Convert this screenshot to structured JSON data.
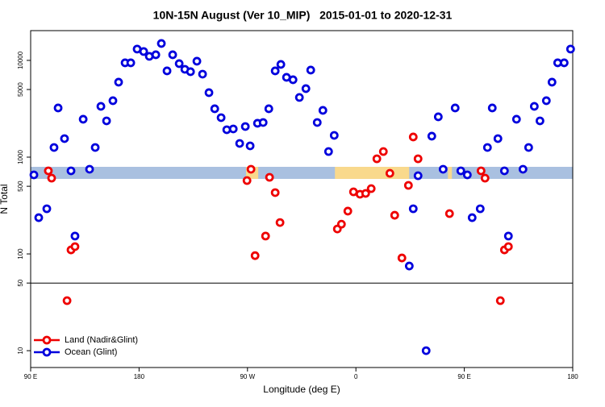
{
  "chart_data": {
    "type": "scatter",
    "title": "10N-15N August (Ver 10_MIP)   2015-01-01 to 2020-12-31",
    "x_label": "Longitude (deg E)",
    "y_label": "N Total",
    "log_y": true,
    "xlim": [
      90,
      540
    ],
    "xticks": [
      {
        "value": 90,
        "label": "90 E"
      },
      {
        "value": 180,
        "label": "180"
      },
      {
        "value": 270,
        "label": "90 W"
      },
      {
        "value": 360,
        "label": "0"
      },
      {
        "value": 450,
        "label": "90 E"
      },
      {
        "value": 540,
        "label": "180"
      }
    ],
    "ylim": [
      6.7,
      20300
    ],
    "yticks": [
      10,
      50,
      100,
      500,
      1000,
      5000,
      10000
    ],
    "reference_line": 50,
    "band": {
      "y": [
        596,
        794
      ],
      "color": "#a9c0e0",
      "highlight_color": "#f9d98c",
      "highlights": [
        [
          268.8,
          278.9
        ],
        [
          342.6,
          404.2
        ],
        [
          436.4,
          439.7
        ]
      ]
    },
    "legend": "bottom-left",
    "series": [
      {
        "name": "Land (Nadir&Glint)",
        "color": "#ee0000",
        "x": [
          104.7,
          107.4,
          120.2,
          123.5,
          126.8,
          269.6,
          272.9,
          276.3,
          285,
          288.3,
          293,
          297,
          344.6,
          348,
          353.3,
          358,
          363.4,
          368.1,
          372.7,
          377.4,
          382.8,
          388.2,
          392.2,
          398.2,
          403.6,
          407.6,
          411.6,
          437.7,
          463.9,
          467.2,
          479.9,
          483.3,
          486.6
        ],
        "values": [
          722,
          607,
          32.9,
          110,
          119,
          573,
          750,
          96,
          153,
          619,
          430,
          211,
          181,
          203,
          277,
          438,
          414,
          422,
          473,
          962,
          1143,
          681,
          251,
          90.8,
          511,
          1616,
          962,
          261,
          722,
          607,
          32.9,
          110,
          119
        ]
      },
      {
        "name": "Ocean (Glint)",
        "color": "#0000dd",
        "x": [
          92.7,
          96.7,
          103.4,
          109.4,
          112.8,
          118.1,
          123.5,
          126.8,
          133.6,
          138.9,
          143.6,
          148.3,
          153,
          158.3,
          163,
          168.4,
          173.1,
          178.4,
          183.8,
          188.5,
          193.9,
          198.5,
          203.2,
          207.9,
          213.3,
          218,
          222.7,
          228,
          232.7,
          238,
          242.8,
          248.1,
          252.8,
          258.2,
          263.5,
          268.2,
          272.2,
          278.3,
          283,
          287.7,
          293,
          297.7,
          302.4,
          307.8,
          313.1,
          318.5,
          322.5,
          327.9,
          332.6,
          337.3,
          342,
          404.3,
          407.6,
          411.6,
          418.3,
          423,
          428.4,
          432.4,
          442.4,
          447.1,
          452.5,
          456.5,
          463.2,
          469.2,
          473.2,
          477.9,
          483.3,
          486.6,
          493.3,
          498.7,
          503.4,
          508.1,
          512.8,
          518.1,
          522.8,
          527.5,
          532.9,
          538.2
        ],
        "values": [
          656,
          237,
          293,
          1259,
          3223,
          1555,
          722,
          153,
          2466,
          750,
          1259,
          3350,
          2371,
          3831,
          5957,
          9441,
          9441,
          13090,
          12360,
          11010,
          11430,
          14960,
          7790,
          11430,
          9260,
          8090,
          7640,
          9810,
          7210,
          4640,
          3162,
          2560,
          1920,
          1957,
          1386,
          2073,
          1308,
          2239,
          2281,
          3162,
          7790,
          9080,
          6680,
          6310,
          4140,
          5110,
          7940,
          2281,
          3043,
          1143,
          1679,
          75,
          293,
          643,
          10,
          1648,
          2610,
          750,
          3223,
          722,
          656,
          237,
          293,
          1259,
          3223,
          1555,
          722,
          153,
          2466,
          750,
          1259,
          3350,
          2371,
          3831,
          5957,
          9441,
          9441,
          13090
        ]
      }
    ]
  }
}
